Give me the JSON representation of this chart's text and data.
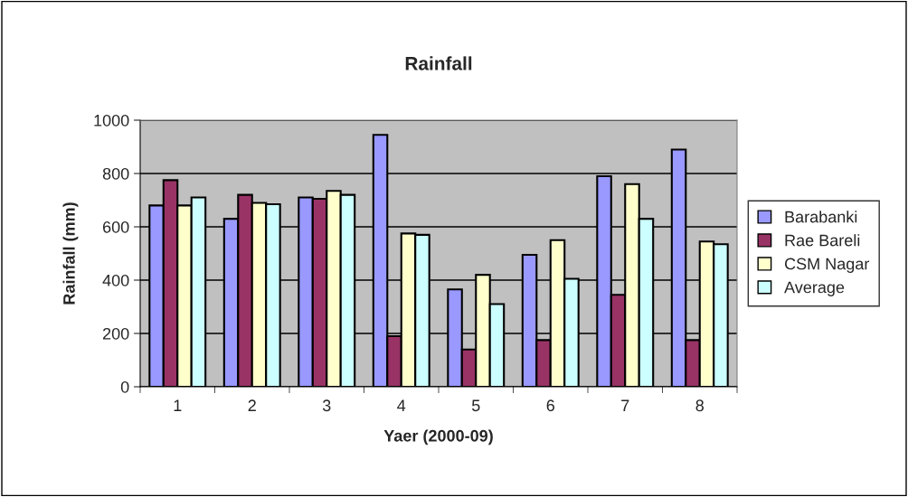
{
  "chart_data": {
    "type": "bar",
    "title": "Rainfall",
    "xlabel": "Yaer (2000-09)",
    "ylabel": "Rainfall (mm)",
    "categories": [
      "1",
      "2",
      "3",
      "4",
      "5",
      "6",
      "7",
      "8"
    ],
    "series": [
      {
        "name": "Barabanki",
        "color": "#9999ff",
        "values": [
          680,
          630,
          710,
          945,
          365,
          495,
          790,
          890
        ]
      },
      {
        "name": "Rae Bareli",
        "color": "#993366",
        "values": [
          775,
          720,
          705,
          190,
          140,
          175,
          345,
          175
        ]
      },
      {
        "name": "CSM Nagar",
        "color": "#ffffcc",
        "values": [
          680,
          690,
          735,
          575,
          420,
          550,
          760,
          545
        ]
      },
      {
        "name": "Average",
        "color": "#ccffff",
        "values": [
          710,
          685,
          720,
          570,
          310,
          405,
          630,
          535
        ]
      }
    ],
    "ylim": [
      0,
      1000
    ],
    "yticks": [
      0,
      200,
      400,
      600,
      800,
      1000
    ],
    "grid": "y",
    "legend": "right"
  }
}
